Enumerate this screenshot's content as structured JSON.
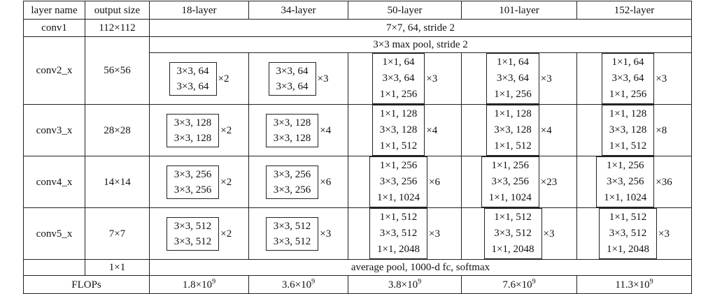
{
  "headers": [
    "layer name",
    "output size",
    "18-layer",
    "34-layer",
    "50-layer",
    "101-layer",
    "152-layer"
  ],
  "conv1": {
    "name": "conv1",
    "size": "112×112",
    "desc": "7×7, 64, stride 2"
  },
  "conv2": {
    "name": "conv2_x",
    "size": "56×56",
    "pool": "3×3 max pool, stride 2",
    "cells": [
      {
        "rows": [
          "3×3, 64",
          "3×3, 64"
        ],
        "mult": "×2"
      },
      {
        "rows": [
          "3×3, 64",
          "3×3, 64"
        ],
        "mult": "×3"
      },
      {
        "rows": [
          "1×1, 64",
          "3×3, 64",
          "1×1, 256"
        ],
        "mult": "×3"
      },
      {
        "rows": [
          "1×1, 64",
          "3×3, 64",
          "1×1, 256"
        ],
        "mult": "×3"
      },
      {
        "rows": [
          "1×1, 64",
          "3×3, 64",
          "1×1, 256"
        ],
        "mult": "×3"
      }
    ]
  },
  "conv3": {
    "name": "conv3_x",
    "size": "28×28",
    "cells": [
      {
        "rows": [
          "3×3, 128",
          "3×3, 128"
        ],
        "mult": "×2"
      },
      {
        "rows": [
          "3×3, 128",
          "3×3, 128"
        ],
        "mult": "×4"
      },
      {
        "rows": [
          "1×1, 128",
          "3×3, 128",
          "1×1, 512"
        ],
        "mult": "×4"
      },
      {
        "rows": [
          "1×1, 128",
          "3×3, 128",
          "1×1, 512"
        ],
        "mult": "×4"
      },
      {
        "rows": [
          "1×1, 128",
          "3×3, 128",
          "1×1, 512"
        ],
        "mult": "×8"
      }
    ]
  },
  "conv4": {
    "name": "conv4_x",
    "size": "14×14",
    "cells": [
      {
        "rows": [
          "3×3, 256",
          "3×3, 256"
        ],
        "mult": "×2"
      },
      {
        "rows": [
          "3×3, 256",
          "3×3, 256"
        ],
        "mult": "×6"
      },
      {
        "rows": [
          "1×1, 256",
          "3×3, 256",
          "1×1, 1024"
        ],
        "mult": "×6"
      },
      {
        "rows": [
          "1×1, 256",
          "3×3, 256",
          "1×1, 1024"
        ],
        "mult": "×23"
      },
      {
        "rows": [
          "1×1, 256",
          "3×3, 256",
          "1×1, 1024"
        ],
        "mult": "×36"
      }
    ]
  },
  "conv5": {
    "name": "conv5_x",
    "size": "7×7",
    "cells": [
      {
        "rows": [
          "3×3, 512",
          "3×3, 512"
        ],
        "mult": "×2"
      },
      {
        "rows": [
          "3×3, 512",
          "3×3, 512"
        ],
        "mult": "×3"
      },
      {
        "rows": [
          "1×1, 512",
          "3×3, 512",
          "1×1, 2048"
        ],
        "mult": "×3"
      },
      {
        "rows": [
          "1×1, 512",
          "3×3, 512",
          "1×1, 2048"
        ],
        "mult": "×3"
      },
      {
        "rows": [
          "1×1, 512",
          "3×3, 512",
          "1×1, 2048"
        ],
        "mult": "×3"
      }
    ]
  },
  "final": {
    "size": "1×1",
    "desc": "average pool, 1000-d fc, softmax"
  },
  "flops": {
    "label": "FLOPs",
    "values": [
      {
        "mant": "1.8×10",
        "exp": "9"
      },
      {
        "mant": "3.6×10",
        "exp": "9"
      },
      {
        "mant": "3.8×10",
        "exp": "9"
      },
      {
        "mant": "7.6×10",
        "exp": "9"
      },
      {
        "mant": "11.3×10",
        "exp": "9"
      }
    ]
  }
}
